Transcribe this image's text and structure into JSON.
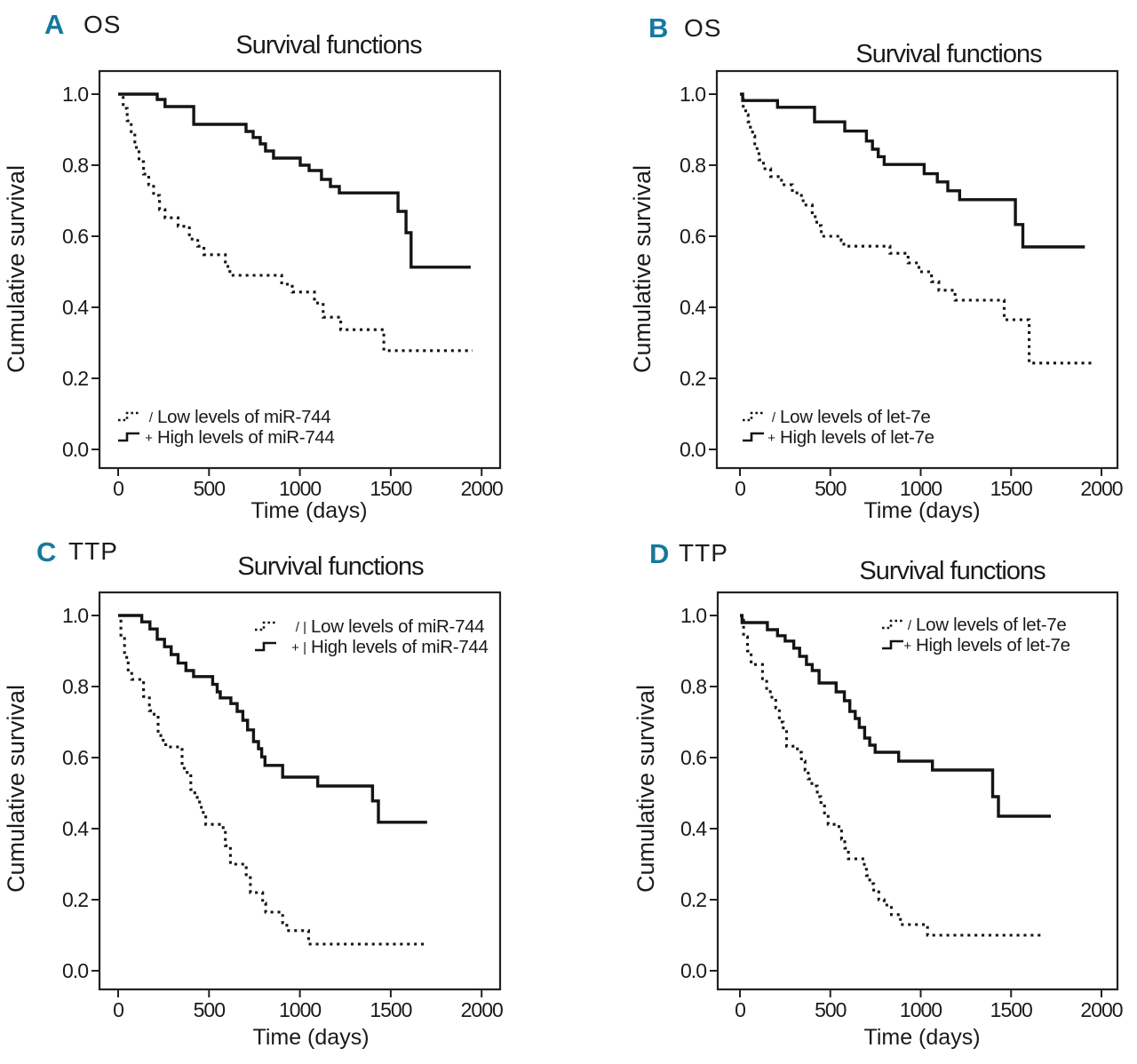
{
  "page": {
    "background": "#ffffff"
  },
  "colors": {
    "panel_letter": "#16799e",
    "text": "#1a1a1a",
    "line": "#141414",
    "frame": "#222222"
  },
  "chart_data": [
    {
      "type": "line",
      "subtype": "kaplan-meier-step",
      "panel_label": "A",
      "group_label": "OS",
      "title": "Survival functions",
      "xlabel": "Time (days)",
      "ylabel": "Cumulative survival",
      "xticks": [
        0,
        500,
        1000,
        1500,
        2000
      ],
      "yticks": [
        "0.0",
        "0.2",
        "0.4",
        "0.6",
        "0.8",
        "1.0"
      ],
      "xlim": [
        0,
        2100
      ],
      "ylim": [
        0,
        1.0
      ],
      "grid": false,
      "legend_position": "bottom-left",
      "legend": [
        {
          "label": "Low levels of miR-744",
          "style": "dotted",
          "marker": "/"
        },
        {
          "label": "High levels of miR-744",
          "style": "solid",
          "marker": "+"
        }
      ],
      "series": [
        {
          "name": "Low levels of miR-744",
          "style": "dotted",
          "steps": [
            [
              0,
              1.0
            ],
            [
              28,
              0.96
            ],
            [
              50,
              0.925
            ],
            [
              72,
              0.885
            ],
            [
              92,
              0.85
            ],
            [
              115,
              0.81
            ],
            [
              140,
              0.775
            ],
            [
              168,
              0.745
            ],
            [
              195,
              0.715
            ],
            [
              228,
              0.675
            ],
            [
              258,
              0.652
            ],
            [
              330,
              0.628
            ],
            [
              392,
              0.592
            ],
            [
              438,
              0.572
            ],
            [
              472,
              0.548
            ],
            [
              590,
              0.515
            ],
            [
              615,
              0.49
            ],
            [
              900,
              0.465
            ],
            [
              958,
              0.443
            ],
            [
              1080,
              0.412
            ],
            [
              1128,
              0.372
            ],
            [
              1225,
              0.337
            ],
            [
              1462,
              0.278
            ],
            [
              1950,
              0.278
            ]
          ]
        },
        {
          "name": "High levels of miR-744",
          "style": "solid",
          "steps": [
            [
              0,
              1.0
            ],
            [
              215,
              0.985
            ],
            [
              258,
              0.965
            ],
            [
              416,
              0.915
            ],
            [
              704,
              0.895
            ],
            [
              743,
              0.878
            ],
            [
              782,
              0.86
            ],
            [
              811,
              0.84
            ],
            [
              855,
              0.82
            ],
            [
              1002,
              0.8
            ],
            [
              1051,
              0.785
            ],
            [
              1119,
              0.76
            ],
            [
              1168,
              0.74
            ],
            [
              1217,
              0.722
            ],
            [
              1540,
              0.67
            ],
            [
              1584,
              0.61
            ],
            [
              1612,
              0.513
            ],
            [
              1940,
              0.513
            ]
          ]
        }
      ]
    },
    {
      "type": "line",
      "subtype": "kaplan-meier-step",
      "panel_label": "B",
      "group_label": "OS",
      "title": "Survival functions",
      "xlabel": "Time (days)",
      "ylabel": "Cumulative survival",
      "xticks": [
        0,
        500,
        1000,
        1500,
        2000
      ],
      "yticks": [
        "0.0",
        "0.2",
        "0.4",
        "0.6",
        "0.8",
        "1.0"
      ],
      "xlim": [
        0,
        2100
      ],
      "ylim": [
        0,
        1.0
      ],
      "grid": false,
      "legend_position": "bottom-left",
      "legend": [
        {
          "label": "Low levels of let-7e",
          "style": "dotted",
          "marker": "/"
        },
        {
          "label": "High levels of let-7e",
          "style": "solid",
          "marker": "+"
        }
      ],
      "series": [
        {
          "name": "Low levels of let-7e",
          "style": "dotted",
          "steps": [
            [
              0,
              1.0
            ],
            [
              18,
              0.962
            ],
            [
              32,
              0.942
            ],
            [
              45,
              0.922
            ],
            [
              58,
              0.902
            ],
            [
              70,
              0.882
            ],
            [
              82,
              0.86
            ],
            [
              95,
              0.838
            ],
            [
              105,
              0.815
            ],
            [
              130,
              0.79
            ],
            [
              170,
              0.768
            ],
            [
              230,
              0.745
            ],
            [
              290,
              0.722
            ],
            [
              340,
              0.7
            ],
            [
              365,
              0.688
            ],
            [
              400,
              0.655
            ],
            [
              425,
              0.63
            ],
            [
              450,
              0.6
            ],
            [
              560,
              0.588
            ],
            [
              575,
              0.572
            ],
            [
              830,
              0.552
            ],
            [
              930,
              0.525
            ],
            [
              990,
              0.5
            ],
            [
              1060,
              0.472
            ],
            [
              1100,
              0.448
            ],
            [
              1190,
              0.42
            ],
            [
              1462,
              0.365
            ],
            [
              1600,
              0.243
            ],
            [
              1950,
              0.243
            ]
          ]
        },
        {
          "name": "High levels of let-7e",
          "style": "solid",
          "steps": [
            [
              0,
              1.0
            ],
            [
              15,
              0.982
            ],
            [
              208,
              0.963
            ],
            [
              413,
              0.922
            ],
            [
              580,
              0.896
            ],
            [
              700,
              0.868
            ],
            [
              733,
              0.845
            ],
            [
              765,
              0.824
            ],
            [
              798,
              0.802
            ],
            [
              1019,
              0.776
            ],
            [
              1092,
              0.753
            ],
            [
              1150,
              0.728
            ],
            [
              1215,
              0.703
            ],
            [
              1524,
              0.633
            ],
            [
              1565,
              0.57
            ],
            [
              1908,
              0.57
            ]
          ]
        }
      ]
    },
    {
      "type": "line",
      "subtype": "kaplan-meier-step",
      "panel_label": "C",
      "group_label": "TTP",
      "title": "Survival functions",
      "xlabel": "Time (days)",
      "ylabel": "Cumulative survival",
      "xticks": [
        0,
        500,
        1000,
        1500,
        2000
      ],
      "yticks": [
        "0.0",
        "0.2",
        "0.4",
        "0.6",
        "0.8",
        "1.0"
      ],
      "xlim": [
        0,
        2100
      ],
      "ylim": [
        0,
        1.0
      ],
      "grid": false,
      "legend_position": "top-right",
      "legend": [
        {
          "label": "Low levels of miR-744",
          "style": "dotted",
          "marker": "/ |"
        },
        {
          "label": "High levels of miR-744",
          "style": "solid",
          "marker": "+ |"
        }
      ],
      "series": [
        {
          "name": "Low levels of miR-744",
          "style": "dotted",
          "steps": [
            [
              0,
              1.0
            ],
            [
              15,
              0.94
            ],
            [
              35,
              0.882
            ],
            [
              55,
              0.842
            ],
            [
              75,
              0.82
            ],
            [
              140,
              0.772
            ],
            [
              172,
              0.732
            ],
            [
              198,
              0.718
            ],
            [
              220,
              0.662
            ],
            [
              248,
              0.643
            ],
            [
              262,
              0.63
            ],
            [
              340,
              0.623
            ],
            [
              352,
              0.57
            ],
            [
              380,
              0.553
            ],
            [
              400,
              0.51
            ],
            [
              422,
              0.488
            ],
            [
              448,
              0.46
            ],
            [
              468,
              0.438
            ],
            [
              482,
              0.412
            ],
            [
              568,
              0.403
            ],
            [
              590,
              0.352
            ],
            [
              618,
              0.3
            ],
            [
              705,
              0.262
            ],
            [
              728,
              0.22
            ],
            [
              795,
              0.19
            ],
            [
              812,
              0.165
            ],
            [
              905,
              0.135
            ],
            [
              928,
              0.113
            ],
            [
              1048,
              0.075
            ],
            [
              1690,
              0.075
            ]
          ]
        },
        {
          "name": "High levels of miR-744",
          "style": "solid",
          "steps": [
            [
              0,
              1.0
            ],
            [
              130,
              0.982
            ],
            [
              175,
              0.962
            ],
            [
              215,
              0.933
            ],
            [
              255,
              0.912
            ],
            [
              292,
              0.89
            ],
            [
              330,
              0.866
            ],
            [
              373,
              0.845
            ],
            [
              415,
              0.828
            ],
            [
              520,
              0.806
            ],
            [
              545,
              0.785
            ],
            [
              562,
              0.768
            ],
            [
              620,
              0.752
            ],
            [
              655,
              0.73
            ],
            [
              686,
              0.705
            ],
            [
              712,
              0.678
            ],
            [
              745,
              0.645
            ],
            [
              772,
              0.625
            ],
            [
              790,
              0.602
            ],
            [
              808,
              0.578
            ],
            [
              905,
              0.545
            ],
            [
              1098,
              0.52
            ],
            [
              1400,
              0.478
            ],
            [
              1432,
              0.418
            ],
            [
              1700,
              0.418
            ]
          ]
        }
      ]
    },
    {
      "type": "line",
      "subtype": "kaplan-meier-step",
      "panel_label": "D",
      "group_label": "TTP",
      "title": "Survival functions",
      "xlabel": "Time (days)",
      "ylabel": "Cumulative survival",
      "xticks": [
        0,
        500,
        1000,
        1500,
        2000
      ],
      "yticks": [
        "0.0",
        "0.2",
        "0.4",
        "0.6",
        "0.8",
        "1.0"
      ],
      "xlim": [
        0,
        2100
      ],
      "ylim": [
        0,
        1.0
      ],
      "grid": false,
      "legend_position": "top-right",
      "legend": [
        {
          "label": "Low levels of let-7e",
          "style": "dotted",
          "marker": "/"
        },
        {
          "label": "High levels of let-7e",
          "style": "solid",
          "marker": "+"
        }
      ],
      "series": [
        {
          "name": "Low levels of let-7e",
          "style": "dotted",
          "steps": [
            [
              0,
              1.0
            ],
            [
              20,
              0.94
            ],
            [
              42,
              0.9
            ],
            [
              62,
              0.862
            ],
            [
              125,
              0.822
            ],
            [
              148,
              0.79
            ],
            [
              168,
              0.77
            ],
            [
              198,
              0.74
            ],
            [
              218,
              0.7
            ],
            [
              240,
              0.678
            ],
            [
              258,
              0.632
            ],
            [
              318,
              0.615
            ],
            [
              340,
              0.59
            ],
            [
              360,
              0.565
            ],
            [
              378,
              0.54
            ],
            [
              398,
              0.52
            ],
            [
              428,
              0.49
            ],
            [
              448,
              0.468
            ],
            [
              468,
              0.44
            ],
            [
              488,
              0.412
            ],
            [
              548,
              0.4
            ],
            [
              562,
              0.37
            ],
            [
              580,
              0.345
            ],
            [
              600,
              0.315
            ],
            [
              688,
              0.29
            ],
            [
              700,
              0.268
            ],
            [
              718,
              0.245
            ],
            [
              740,
              0.222
            ],
            [
              768,
              0.2
            ],
            [
              798,
              0.185
            ],
            [
              838,
              0.158
            ],
            [
              888,
              0.13
            ],
            [
              1038,
              0.1
            ],
            [
              1680,
              0.1
            ]
          ]
        },
        {
          "name": "High levels of let-7e",
          "style": "solid",
          "steps": [
            [
              0,
              1.0
            ],
            [
              12,
              0.98
            ],
            [
              152,
              0.96
            ],
            [
              208,
              0.943
            ],
            [
              250,
              0.928
            ],
            [
              298,
              0.908
            ],
            [
              330,
              0.885
            ],
            [
              368,
              0.862
            ],
            [
              400,
              0.845
            ],
            [
              438,
              0.81
            ],
            [
              532,
              0.785
            ],
            [
              578,
              0.76
            ],
            [
              608,
              0.73
            ],
            [
              638,
              0.71
            ],
            [
              660,
              0.685
            ],
            [
              690,
              0.655
            ],
            [
              718,
              0.635
            ],
            [
              748,
              0.615
            ],
            [
              878,
              0.59
            ],
            [
              1065,
              0.565
            ],
            [
              1398,
              0.49
            ],
            [
              1430,
              0.435
            ],
            [
              1720,
              0.435
            ]
          ]
        }
      ]
    }
  ]
}
